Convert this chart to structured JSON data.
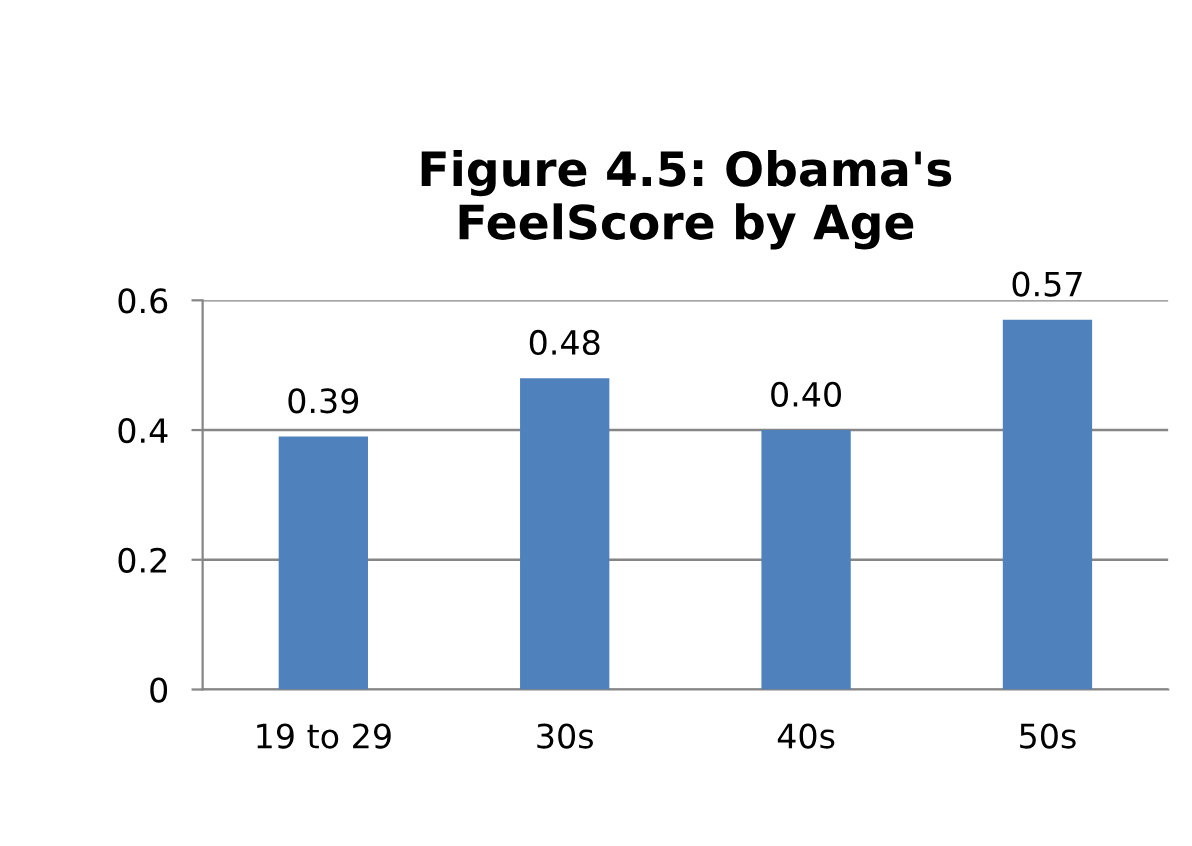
{
  "chart_data": {
    "type": "bar",
    "title": "Figure 4.5: Obama's\nFeelScore by Age",
    "categories": [
      "19 to 29",
      "30s",
      "40s",
      "50s"
    ],
    "values": [
      0.39,
      0.48,
      0.4,
      0.57
    ],
    "color": "#4f81bd",
    "value_labels": [
      "0.39",
      "0.48",
      "0.40",
      "0.57"
    ],
    "ylim": [
      0,
      0.6
    ],
    "yticks": [
      0,
      {
        "value": 0.2,
        "label": "0.2"
      },
      {
        "value": 0.4,
        "label": "0.4"
      },
      {
        "value": 0.6,
        "label": "0.6"
      }
    ],
    "grid": "y",
    "legend": false
  }
}
